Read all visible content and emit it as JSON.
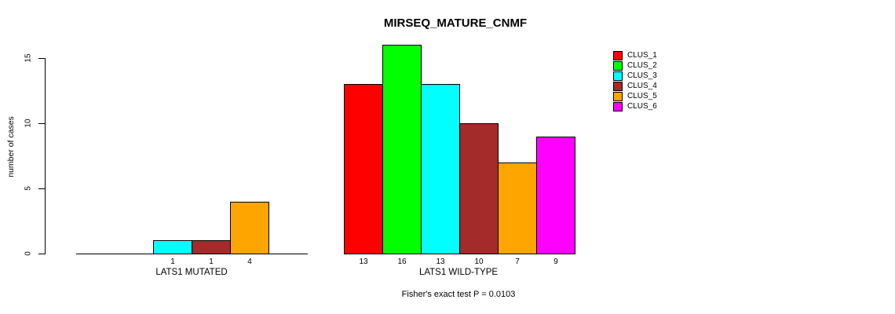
{
  "chart_data": {
    "type": "bar",
    "title": "MIRSEQ_MATURE_CNMF",
    "ylabel": "number of cases",
    "xlabel": "",
    "ylim": [
      0,
      15
    ],
    "yticks": [
      0,
      5,
      10,
      15
    ],
    "grid": false,
    "legend_position": "right",
    "annotation": "Fisher's exact test P = 0.0103",
    "clusters": [
      {
        "name": "CLUS_1",
        "color": "#FF0000"
      },
      {
        "name": "CLUS_2",
        "color": "#00FF00"
      },
      {
        "name": "CLUS_3",
        "color": "#00FFFF"
      },
      {
        "name": "CLUS_4",
        "color": "#A52A2A"
      },
      {
        "name": "CLUS_5",
        "color": "#FFA500"
      },
      {
        "name": "CLUS_6",
        "color": "#FF00FF"
      }
    ],
    "groups": [
      {
        "label": "LATS1 MUTATED",
        "values": [
          0,
          0,
          1,
          1,
          4,
          0
        ]
      },
      {
        "label": "LATS1 WILD-TYPE",
        "values": [
          13,
          16,
          13,
          10,
          7,
          9
        ]
      }
    ]
  }
}
